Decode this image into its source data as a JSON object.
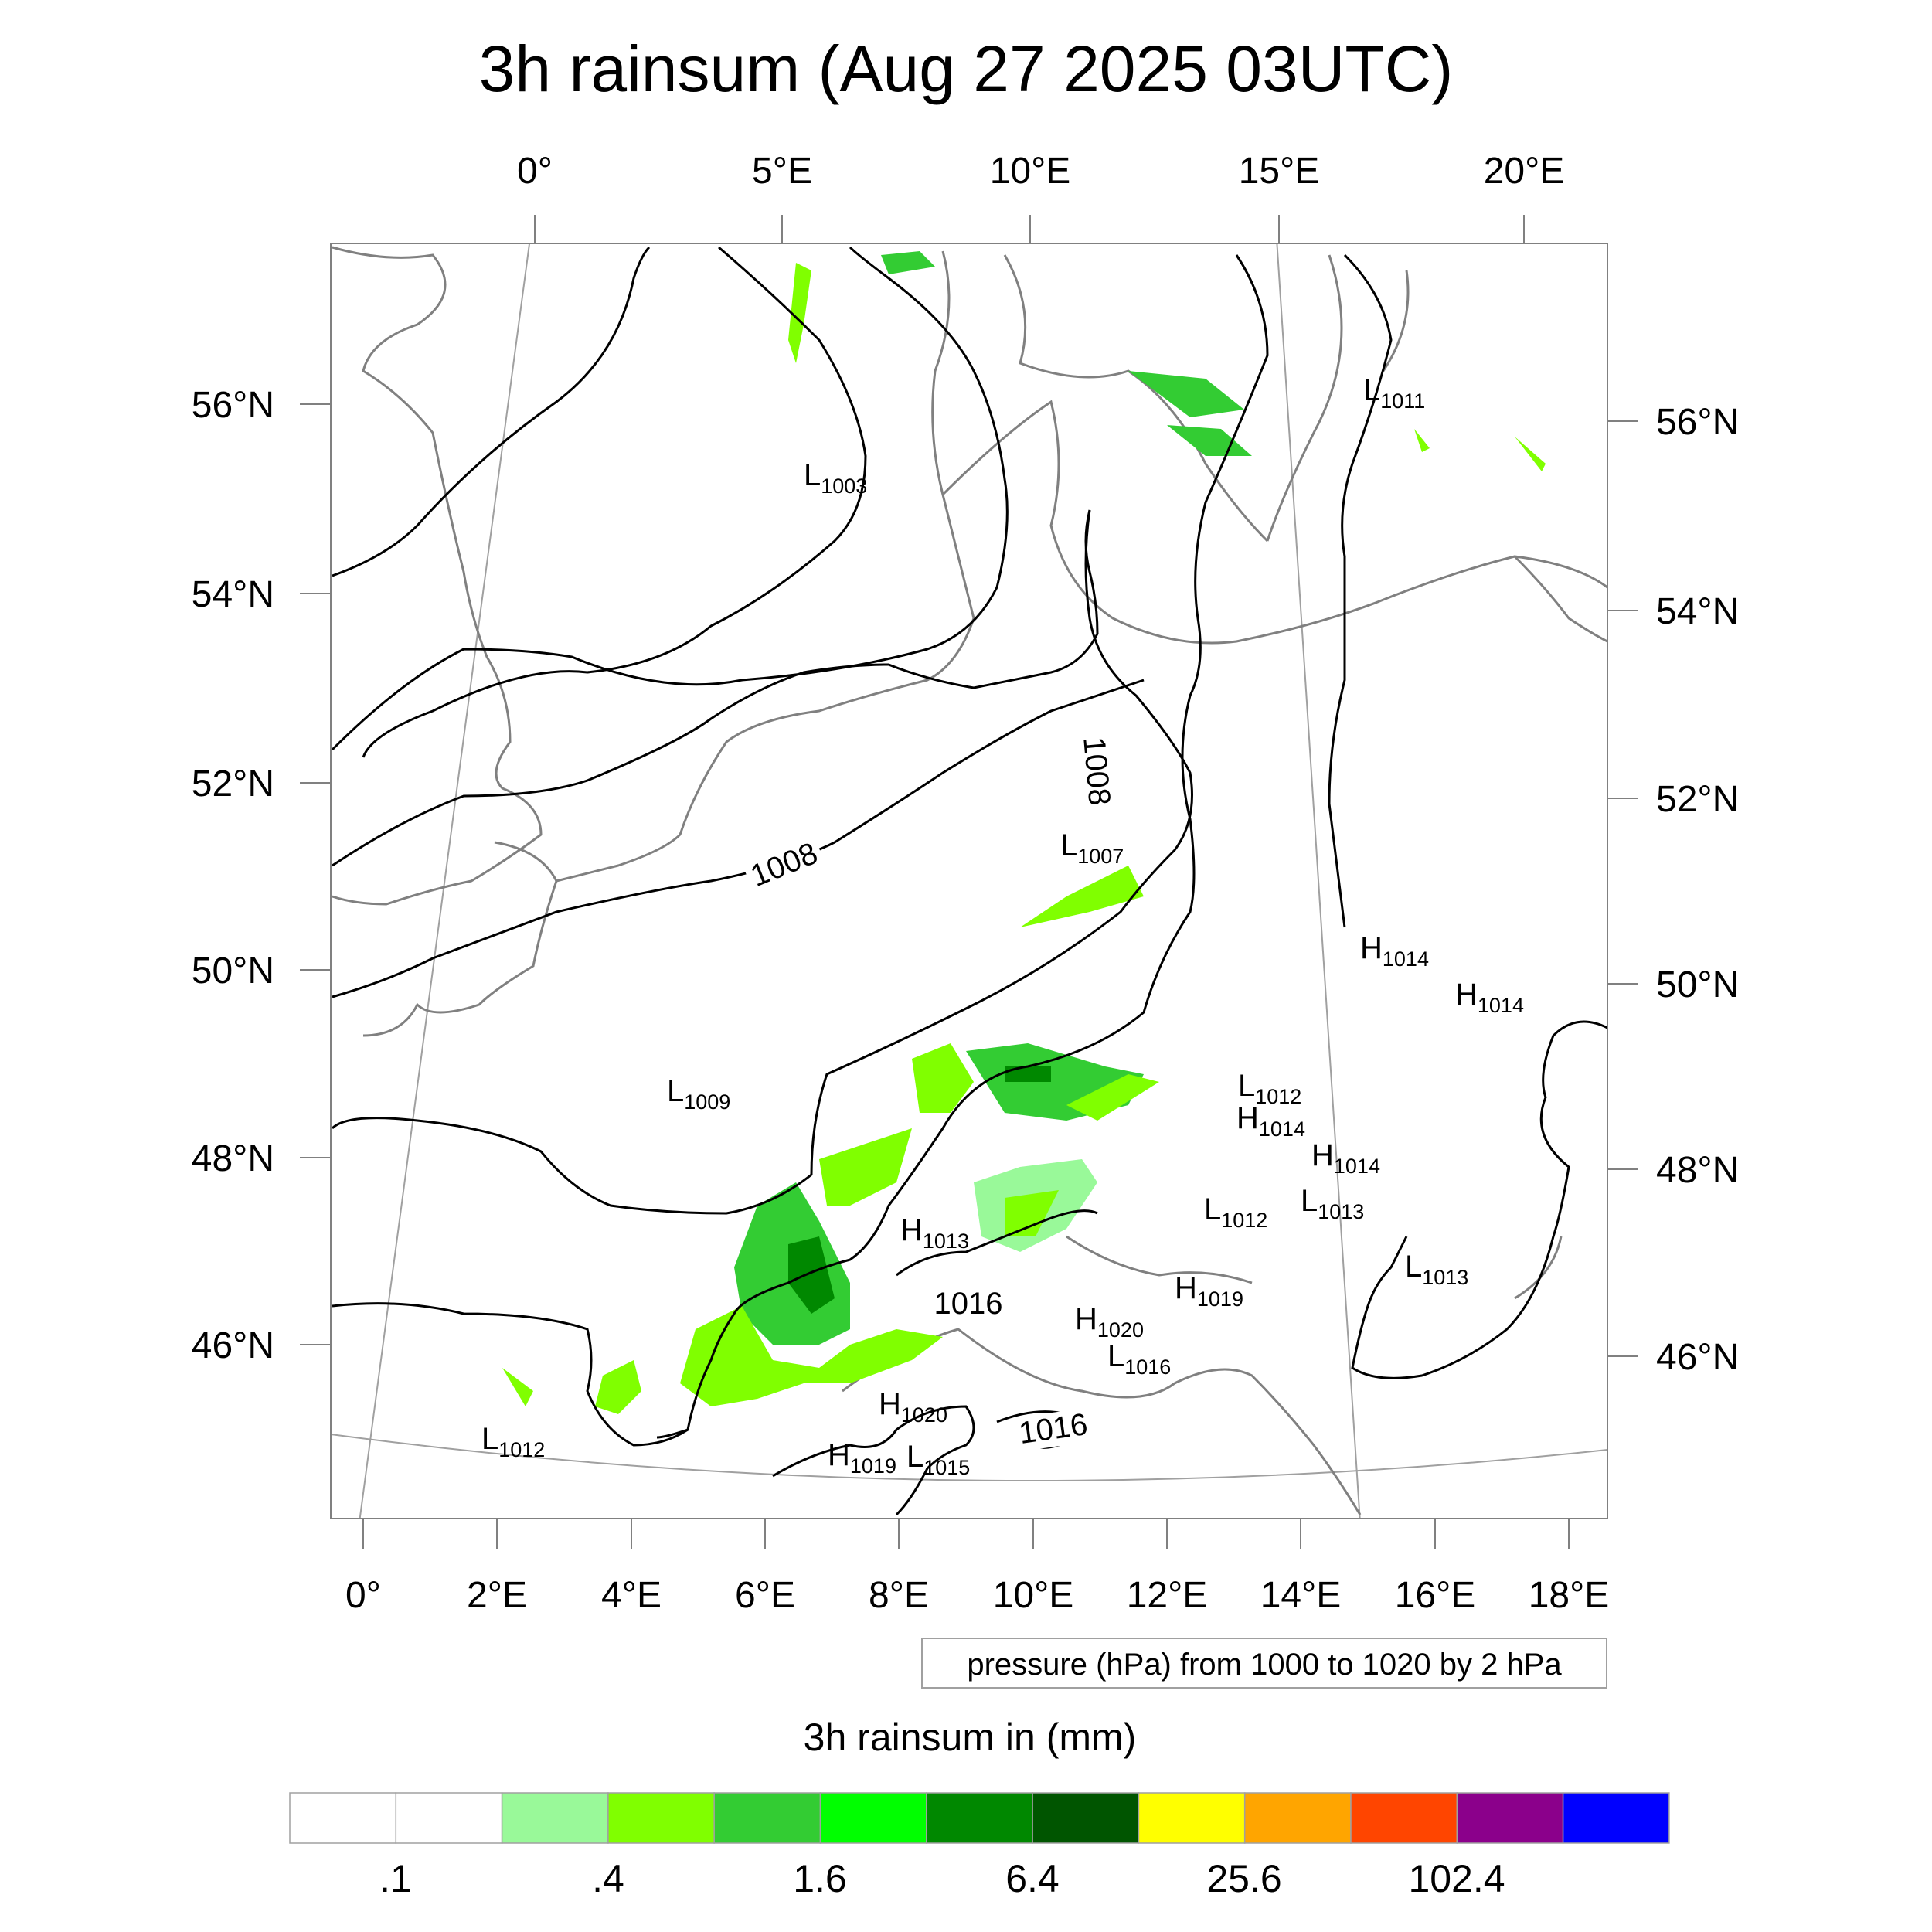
{
  "title": "3h rainsum (Aug 27 2025 03UTC)",
  "top_lon_labels": [
    "0°",
    "5°E",
    "10°E",
    "15°E",
    "20°E"
  ],
  "bottom_lon_labels": [
    "0°",
    "2°E",
    "4°E",
    "6°E",
    "8°E",
    "10°E",
    "12°E",
    "14°E",
    "16°E",
    "18°E"
  ],
  "left_lat_labels": [
    "56°N",
    "54°N",
    "52°N",
    "50°N",
    "48°N",
    "46°N"
  ],
  "right_lat_labels": [
    "56°N",
    "54°N",
    "52°N",
    "50°N",
    "48°N",
    "46°N"
  ],
  "pressure_info": "pressure (hPa) from 1000 to 1020 by 2 hPa",
  "isobar_labels": [
    "1008",
    "1008",
    "1016",
    "1016"
  ],
  "pressure_centers": [
    {
      "type": "L",
      "value": "1003"
    },
    {
      "type": "L",
      "value": "1011"
    },
    {
      "type": "L",
      "value": "1007"
    },
    {
      "type": "L",
      "value": "1009"
    },
    {
      "type": "H",
      "value": "1014"
    },
    {
      "type": "H",
      "value": "1014"
    },
    {
      "type": "L",
      "value": "1012"
    },
    {
      "type": "H",
      "value": "1014"
    },
    {
      "type": "H",
      "value": "1014"
    },
    {
      "type": "L",
      "value": "1012"
    },
    {
      "type": "L",
      "value": "1013"
    },
    {
      "type": "H",
      "value": "1013"
    },
    {
      "type": "L",
      "value": "1013"
    },
    {
      "type": "H",
      "value": "1019"
    },
    {
      "type": "H",
      "value": "1020"
    },
    {
      "type": "L",
      "value": "1016"
    },
    {
      "type": "H",
      "value": "1020"
    },
    {
      "type": "H",
      "value": "1019"
    },
    {
      "type": "L",
      "value": "1015"
    },
    {
      "type": "L",
      "value": "1012"
    }
  ],
  "legend": {
    "title": "3h rainsum in (mm)",
    "colors": [
      "#ffffff",
      "#ffffff",
      "#99f999",
      "#80ff00",
      "#33cc33",
      "#00ff00",
      "#008800",
      "#005500",
      "#ffff00",
      "#ffa500",
      "#ff4500",
      "#8b008b",
      "#0000ff"
    ],
    "tick_labels": [
      ".1",
      ".4",
      "1.6",
      "6.4",
      "25.6",
      "102.4"
    ]
  },
  "colors": {
    "coastline": "#808080",
    "isobar": "#000000",
    "graticule": "#a0a0a0"
  }
}
